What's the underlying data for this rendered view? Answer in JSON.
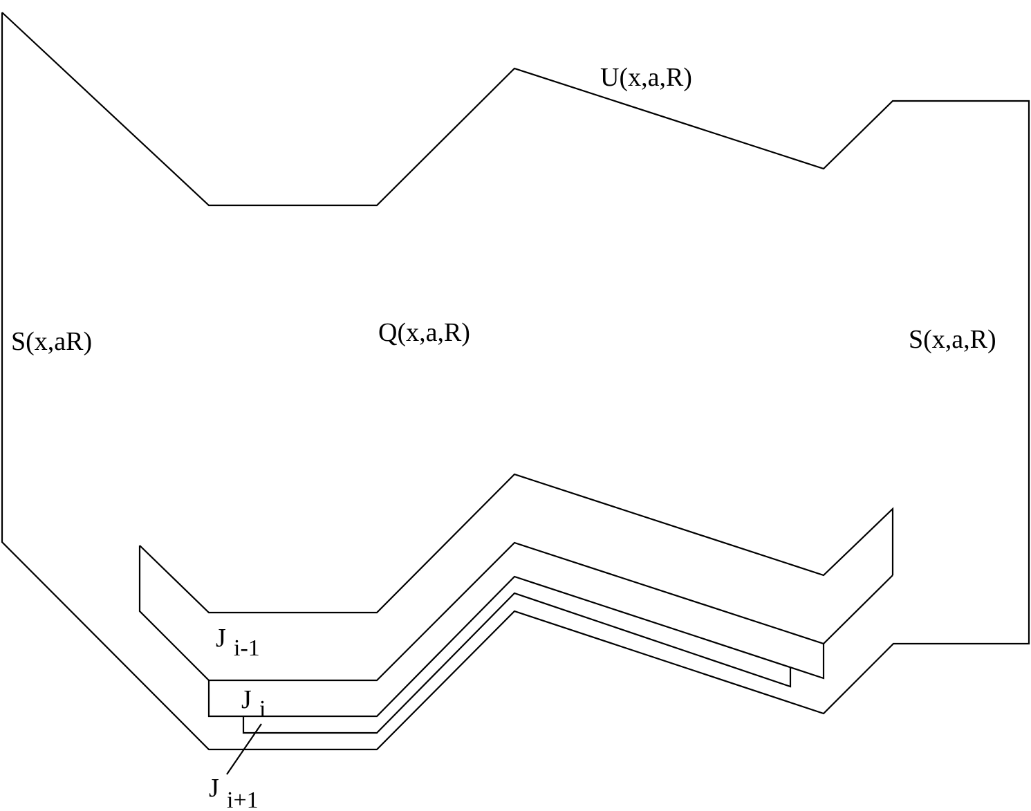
{
  "diagram": {
    "labels": {
      "region_top": "U(x,a,R)",
      "region_center": "Q(x,a,R)",
      "side_left": "S(x,aR)",
      "side_right": "S(x,a,R)",
      "j_prev_base": "J",
      "j_prev_sub": "i-1",
      "j_cur_base": "J",
      "j_cur_sub": "i",
      "j_next_base": "J",
      "j_next_sub": "i+1"
    },
    "colors": {
      "line": "#000000",
      "background": "#ffffff"
    }
  }
}
